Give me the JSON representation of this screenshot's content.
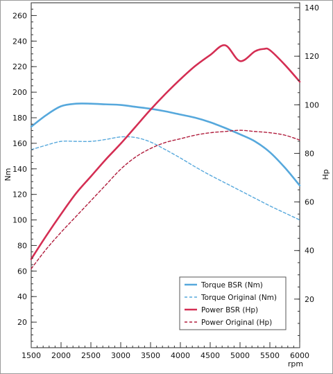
{
  "chart_data": {
    "type": "line",
    "xlabel": "rpm",
    "ylabel_left": "Nm",
    "ylabel_right": "Hp",
    "xlim": [
      1500,
      6000
    ],
    "ylim_left": [
      0,
      270
    ],
    "ylim_right": [
      0,
      142
    ],
    "x_ticks": [
      1500,
      2000,
      2500,
      3000,
      3500,
      4000,
      4500,
      5000,
      5500,
      6000
    ],
    "y_ticks_left": [
      20,
      40,
      60,
      80,
      100,
      120,
      140,
      160,
      180,
      200,
      220,
      240,
      260
    ],
    "y_ticks_right": [
      20,
      40,
      60,
      80,
      100,
      120,
      140
    ],
    "grid": false,
    "legend_position": "bottom-right",
    "series": [
      {
        "name": "Torque BSR (Nm)",
        "axis": "left",
        "color": "#56a8dc",
        "style": "solid",
        "x": [
          1500,
          1750,
          2000,
          2250,
          2500,
          2750,
          3000,
          3250,
          3500,
          3750,
          4000,
          4250,
          4500,
          4750,
          5000,
          5250,
          5500,
          5750,
          6000
        ],
        "values": [
          173,
          182,
          189,
          191,
          191,
          190.5,
          190,
          188.5,
          187,
          185,
          182.5,
          180,
          176.5,
          172,
          167,
          161.5,
          153,
          141,
          127
        ]
      },
      {
        "name": "Torque Original (Nm)",
        "axis": "left",
        "color": "#56a8dc",
        "style": "dashed",
        "x": [
          1500,
          1750,
          2000,
          2250,
          2500,
          2750,
          3000,
          3250,
          3500,
          3750,
          4000,
          4250,
          4500,
          4750,
          5000,
          5250,
          5500,
          5750,
          6000
        ],
        "values": [
          155,
          158.5,
          161.5,
          161.5,
          161.5,
          163,
          165,
          164.5,
          161,
          155,
          148.5,
          141.5,
          135,
          129,
          123,
          117,
          111,
          105.5,
          100
        ]
      },
      {
        "name": "Power BSR (Hp)",
        "axis": "right",
        "color": "#d42e53",
        "style": "solid",
        "x": [
          1500,
          1750,
          2000,
          2250,
          2500,
          2750,
          3000,
          3250,
          3500,
          3750,
          4000,
          4250,
          4500,
          4750,
          5000,
          5250,
          5400,
          5500,
          5750,
          6000
        ],
        "values": [
          36.5,
          46,
          55,
          63.5,
          70.5,
          77.5,
          84,
          91,
          98,
          104.5,
          110.5,
          116,
          120.5,
          124.5,
          118,
          122,
          123,
          122.5,
          116.5,
          109.5
        ]
      },
      {
        "name": "Power Original (Hp)",
        "axis": "right",
        "color": "#b01c3c",
        "style": "dashed",
        "x": [
          1500,
          1750,
          2000,
          2250,
          2500,
          2750,
          3000,
          3250,
          3500,
          3750,
          4000,
          4250,
          4500,
          4750,
          5000,
          5250,
          5500,
          5750,
          6000
        ],
        "values": [
          32.5,
          40.5,
          47.5,
          54,
          60.5,
          67,
          73.5,
          78.5,
          82,
          84.5,
          86,
          87.5,
          88.5,
          89,
          89.5,
          89,
          88.5,
          87.5,
          85.5
        ]
      }
    ]
  }
}
